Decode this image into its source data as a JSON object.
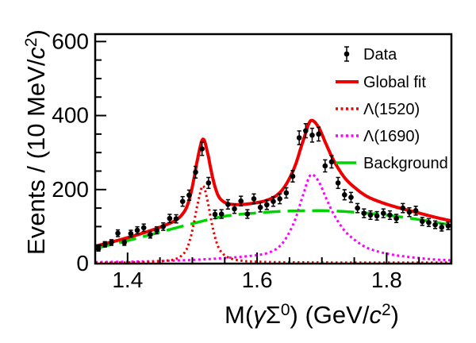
{
  "chart_data": {
    "type": "composite-physics-fit",
    "title": "",
    "xlabel_parts": [
      {
        "t": "M("
      },
      {
        "t": "γ",
        "i": true
      },
      {
        "t": "Σ"
      },
      {
        "t": "0",
        "sup": true
      },
      {
        "t": ") (GeV/"
      },
      {
        "t": "c",
        "i": true
      },
      {
        "t": "2",
        "sup": true
      },
      {
        "t": ")"
      }
    ],
    "ylabel_parts": [
      {
        "t": "Events / (10 MeV/"
      },
      {
        "t": "c",
        "i": true
      },
      {
        "t": "2",
        "sup": true
      },
      {
        "t": ")"
      }
    ],
    "xlim": [
      1.35,
      1.9
    ],
    "ylim": [
      0,
      620
    ],
    "x_major_ticks": [
      {
        "v": 1.4,
        "label": "1.4"
      },
      {
        "v": 1.6,
        "label": "1.6"
      },
      {
        "v": 1.8,
        "label": "1.8"
      }
    ],
    "x_minor_ticks": [
      1.45,
      1.5,
      1.55,
      1.65,
      1.7,
      1.75,
      1.85
    ],
    "y_major_ticks": [
      {
        "v": 0,
        "label": "0"
      },
      {
        "v": 200,
        "label": "200"
      },
      {
        "v": 400,
        "label": "400"
      },
      {
        "v": 600,
        "label": "600"
      }
    ],
    "y_minor_ticks": [
      50,
      100,
      150,
      250,
      300,
      350,
      450,
      500,
      550
    ],
    "grid": false,
    "legend_position": "top-right",
    "colors": {
      "data": "#000000",
      "global_fit": "#ee0000",
      "lambda1520": "#ee0000",
      "lambda1690": "#ff00ff",
      "background": "#00d400"
    },
    "data_points": {
      "label": "Data",
      "bin_width_mev": 10,
      "x": [
        1.355,
        1.365,
        1.375,
        1.385,
        1.395,
        1.405,
        1.415,
        1.425,
        1.435,
        1.445,
        1.455,
        1.465,
        1.475,
        1.485,
        1.495,
        1.505,
        1.515,
        1.525,
        1.535,
        1.545,
        1.555,
        1.565,
        1.575,
        1.585,
        1.595,
        1.605,
        1.615,
        1.625,
        1.635,
        1.645,
        1.655,
        1.665,
        1.675,
        1.685,
        1.695,
        1.705,
        1.715,
        1.725,
        1.735,
        1.745,
        1.755,
        1.765,
        1.775,
        1.785,
        1.795,
        1.805,
        1.815,
        1.825,
        1.835,
        1.845,
        1.855,
        1.865,
        1.875,
        1.885,
        1.895
      ],
      "y": [
        40,
        52,
        57,
        82,
        57,
        81,
        90,
        97,
        78,
        90,
        100,
        122,
        121,
        168,
        185,
        247,
        310,
        218,
        133,
        134,
        160,
        148,
        169,
        134,
        175,
        152,
        159,
        168,
        175,
        191,
        236,
        340,
        359,
        347,
        350,
        264,
        275,
        218,
        186,
        179,
        150,
        136,
        131,
        129,
        136,
        131,
        122,
        150,
        139,
        143,
        114,
        111,
        105,
        98,
        102
      ],
      "yerr_rule": "sqrt"
    },
    "curves": {
      "background": {
        "label": "Background",
        "style": "long-dash",
        "x": [
          1.35,
          1.4,
          1.45,
          1.5,
          1.55,
          1.6,
          1.65,
          1.7,
          1.75,
          1.8,
          1.85,
          1.9
        ],
        "y": [
          41,
          62,
          85,
          108,
          128,
          137,
          142,
          143,
          139,
          131,
          119,
          104
        ]
      },
      "lambda1520": {
        "label": "Λ(1520)",
        "style": "dotted",
        "peak_mass": 1.5165,
        "x": [
          1.35,
          1.4,
          1.44,
          1.46,
          1.475,
          1.485,
          1.492,
          1.498,
          1.503,
          1.508,
          1.5165,
          1.524,
          1.529,
          1.534,
          1.54,
          1.547,
          1.555,
          1.565,
          1.58,
          1.6,
          1.64,
          1.7,
          1.75,
          1.8,
          1.85,
          1.9
        ],
        "y": [
          2,
          3,
          5,
          8,
          13,
          24,
          42,
          75,
          115,
          160,
          210,
          165,
          118,
          78,
          45,
          27,
          17,
          11,
          7,
          5,
          3.5,
          3,
          2.5,
          2.5,
          2.5,
          2.5
        ]
      },
      "lambda1690": {
        "label": "Λ(1690)",
        "style": "dotted",
        "peak_mass": 1.684,
        "x": [
          1.35,
          1.4,
          1.45,
          1.5,
          1.55,
          1.6,
          1.615,
          1.63,
          1.64,
          1.65,
          1.66,
          1.67,
          1.684,
          1.695,
          1.706,
          1.716,
          1.726,
          1.736,
          1.75,
          1.767,
          1.78,
          1.8,
          1.82,
          1.85,
          1.875,
          1.9
        ],
        "y": [
          4,
          5,
          7,
          10,
          15,
          23,
          28,
          40,
          57,
          85,
          125,
          180,
          241,
          222,
          179,
          141,
          111,
          87,
          65,
          45,
          36,
          27,
          21,
          15,
          11,
          9
        ]
      },
      "global_fit": {
        "label": "Global fit",
        "style": "solid",
        "rule": "sum_of_components"
      }
    },
    "legend": [
      {
        "label": "Data",
        "swatch": "data-marker",
        "color_key": "data"
      },
      {
        "label": "Global fit",
        "swatch": "solid-line",
        "color_key": "global_fit"
      },
      {
        "label": "Λ(1520)",
        "swatch": "dotted-line",
        "color_key": "lambda1520"
      },
      {
        "label": "Λ(1690)",
        "swatch": "dotted-line",
        "color_key": "lambda1690"
      },
      {
        "label": "Background",
        "swatch": "dash-line",
        "color_key": "background"
      }
    ]
  }
}
